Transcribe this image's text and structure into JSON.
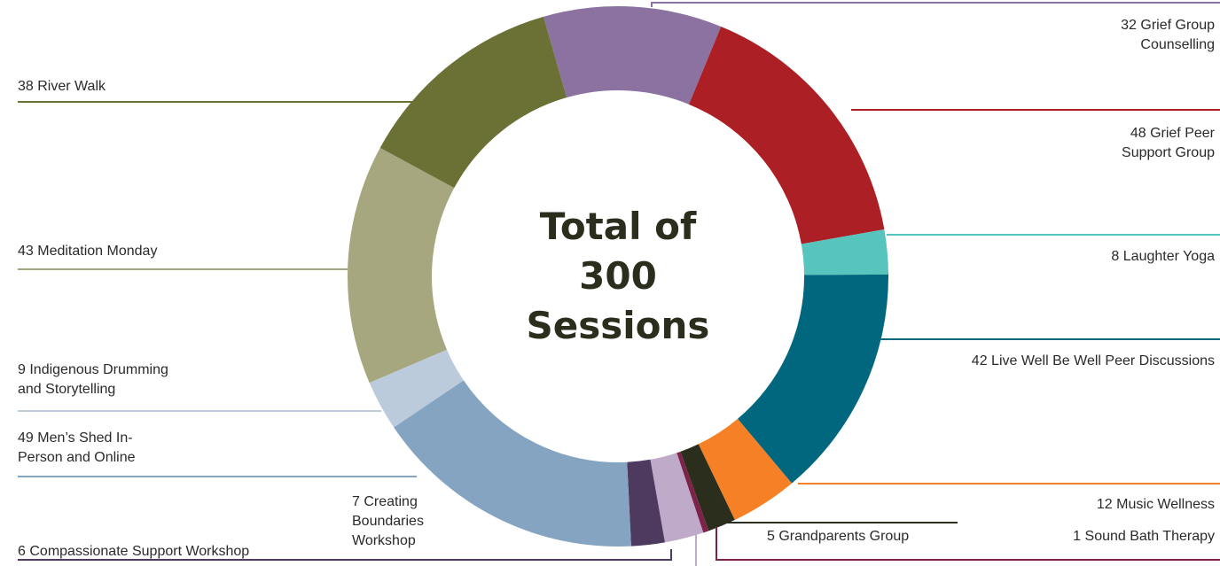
{
  "chart_data": {
    "type": "donut",
    "title": "Total of 300 Sessions",
    "categories": [
      "Grief Group Counselling",
      "Grief Peer Support Group",
      "Laughter Yoga",
      "Live Well Be Well Peer Discussions",
      "Music Wellness",
      "Grandparents Group",
      "Sound Bath Therapy",
      "Creating Boundaries Workshop",
      "Compassionate Support Workshop",
      "Men’s Shed In-Person and Online",
      "Indigenous Drumming and Storytelling",
      "Meditation Monday",
      "River Walk"
    ],
    "values": [
      32,
      48,
      8,
      42,
      12,
      5,
      1,
      7,
      6,
      49,
      9,
      43,
      38
    ],
    "colors": [
      "#8b72a0",
      "#ac1f24",
      "#57c4bd",
      "#00677f",
      "#f58025",
      "#2b2e1c",
      "#7d2248",
      "#bfaac9",
      "#4f3a5f",
      "#84a4c2",
      "#bccbdc",
      "#a6a67f",
      "#6b7035"
    ]
  }
}
